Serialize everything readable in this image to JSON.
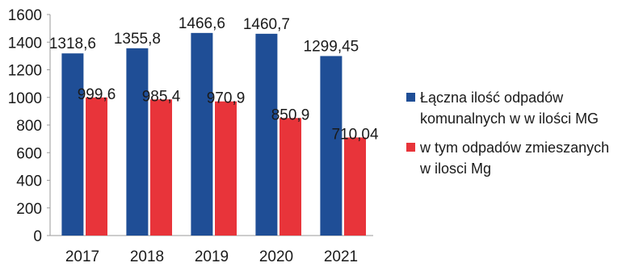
{
  "chart_data": {
    "type": "bar",
    "categories": [
      "2017",
      "2018",
      "2019",
      "2020",
      "2021"
    ],
    "series": [
      {
        "name": "Łączna ilość odpadów komunalnych w w ilości MG",
        "color": "#1f4e96",
        "values": [
          1318.6,
          1355.8,
          1466.6,
          1460.7,
          1299.45
        ],
        "labels": [
          "1318,6",
          "1355,8",
          "1466,6",
          "1460,7",
          "1299,45"
        ]
      },
      {
        "name": "w tym odpadów zmieszanych w ilosci Mg",
        "color": "#e8343a",
        "values": [
          999.6,
          985.4,
          970.9,
          850.9,
          710.04
        ],
        "labels": [
          "999,6",
          "985,4",
          "970,9",
          "850,9",
          "710,04"
        ]
      }
    ],
    "yticks": [
      "0",
      "200",
      "400",
      "600",
      "800",
      "1000",
      "1200",
      "1400",
      "1600"
    ],
    "ylim": [
      0,
      1600
    ],
    "title": "",
    "xlabel": "",
    "ylabel": "",
    "grid": false,
    "legend_position": "right"
  }
}
